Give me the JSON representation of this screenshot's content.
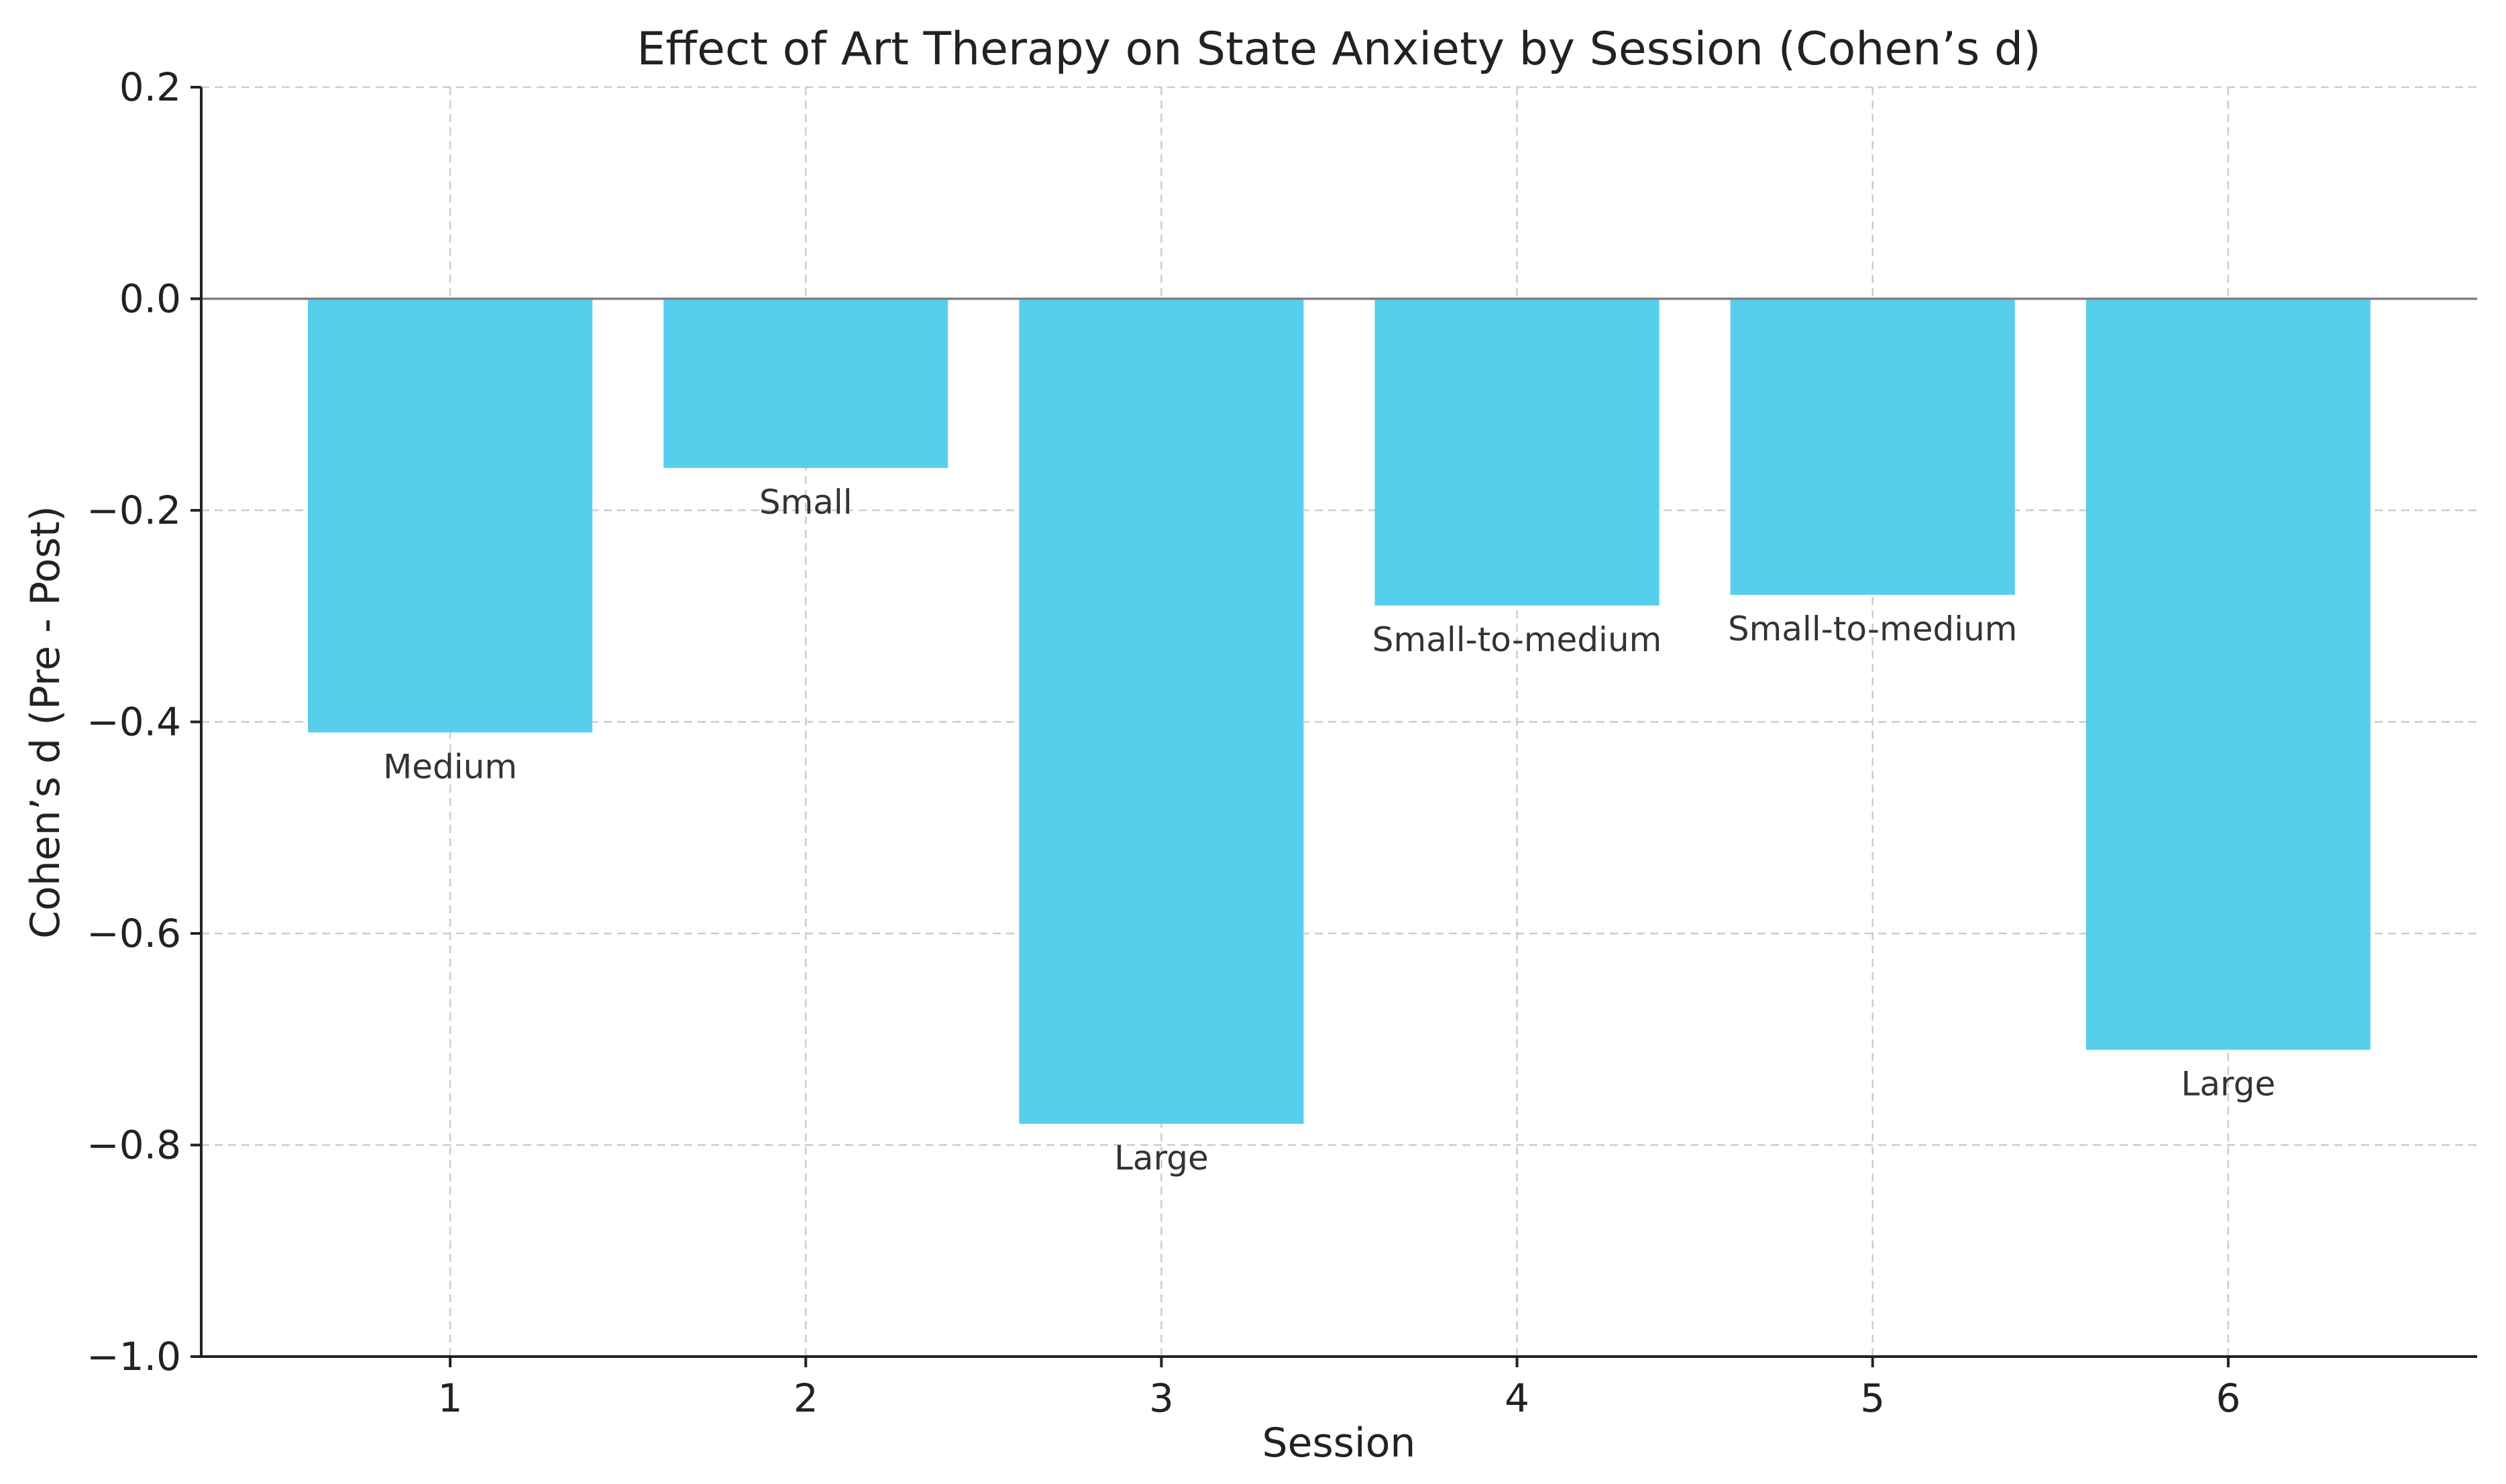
{
  "chart_data": {
    "type": "bar",
    "title": "Effect of Art Therapy on State Anxiety by Session (Cohen’s d)",
    "xlabel": "Session",
    "ylabel": "Cohen’s d (Pre - Post)",
    "categories": [
      "1",
      "2",
      "3",
      "4",
      "5",
      "6"
    ],
    "values": [
      -0.41,
      -0.16,
      -0.78,
      -0.29,
      -0.28,
      -0.71
    ],
    "bar_labels": [
      "Medium",
      "Small",
      "Large",
      "Small-to-medium",
      "Small-to-medium",
      "Large"
    ],
    "ylim": [
      -1.0,
      0.2
    ],
    "yticks": [
      0.2,
      0.0,
      -0.2,
      -0.4,
      -0.6,
      -0.8,
      -1.0
    ],
    "ytick_labels": [
      "0.2",
      "0.0",
      "−0.2",
      "−0.4",
      "−0.6",
      "−0.8",
      "−1.0"
    ],
    "grid": true,
    "bar_color": "#57cfec",
    "reference_line": 0.0
  }
}
